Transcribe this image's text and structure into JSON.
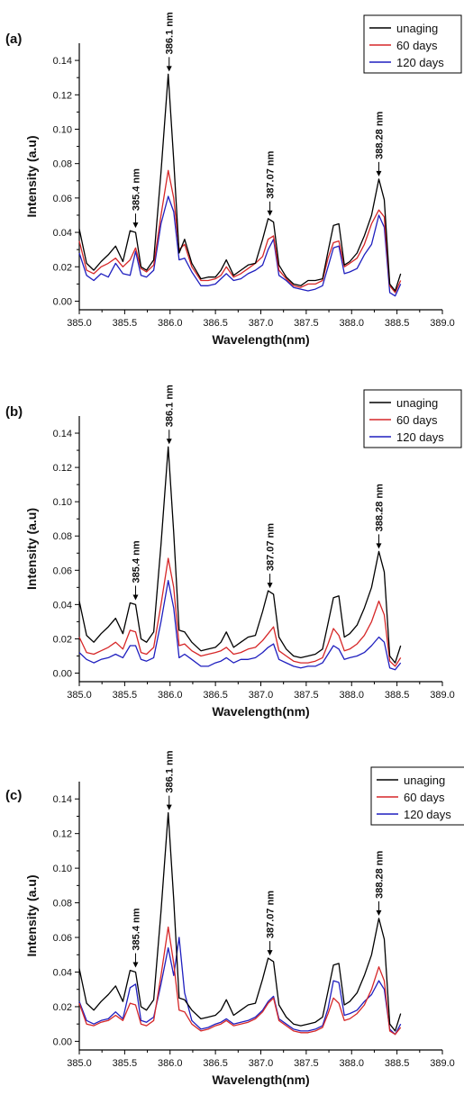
{
  "chart_data": [
    {
      "type": "line",
      "panel_label": "(a)",
      "xlabel": "Wavelength(nm)",
      "ylabel": "Intensity (a.u)",
      "xlim": [
        385.0,
        389.0
      ],
      "ylim": [
        -0.005,
        0.15
      ],
      "x_ticks": [
        "385.0",
        "385.5",
        "386.0",
        "386.5",
        "387.0",
        "387.5",
        "388.0",
        "388.5",
        "389.0"
      ],
      "y_ticks": [
        "0.00",
        "0.02",
        "0.04",
        "0.06",
        "0.08",
        "0.10",
        "0.12",
        "0.14"
      ],
      "legend_position": "top-right",
      "x": [
        385.0,
        385.08,
        385.16,
        385.24,
        385.32,
        385.4,
        385.48,
        385.56,
        385.62,
        385.68,
        385.74,
        385.82,
        385.9,
        385.98,
        386.04,
        386.1,
        386.16,
        386.24,
        386.34,
        386.42,
        386.5,
        386.56,
        386.62,
        386.7,
        386.78,
        386.86,
        386.94,
        387.02,
        387.08,
        387.14,
        387.2,
        387.28,
        387.36,
        387.44,
        387.52,
        387.6,
        387.68,
        387.74,
        387.8,
        387.86,
        387.92,
        387.98,
        388.06,
        388.14,
        388.22,
        388.3,
        388.36,
        388.42,
        388.48,
        388.54
      ],
      "series": [
        {
          "name": "unaging",
          "color": "#000000",
          "values": [
            0.042,
            0.022,
            0.018,
            0.023,
            0.027,
            0.032,
            0.023,
            0.041,
            0.04,
            0.02,
            0.018,
            0.024,
            0.075,
            0.132,
            0.082,
            0.028,
            0.036,
            0.022,
            0.013,
            0.014,
            0.014,
            0.018,
            0.024,
            0.015,
            0.018,
            0.021,
            0.022,
            0.036,
            0.048,
            0.046,
            0.021,
            0.014,
            0.01,
            0.009,
            0.012,
            0.012,
            0.013,
            0.029,
            0.044,
            0.045,
            0.021,
            0.023,
            0.028,
            0.038,
            0.05,
            0.071,
            0.059,
            0.01,
            0.006,
            0.016
          ]
        },
        {
          "name": "60 days",
          "color": "#d62728",
          "values": [
            0.035,
            0.018,
            0.016,
            0.02,
            0.022,
            0.025,
            0.02,
            0.024,
            0.031,
            0.019,
            0.017,
            0.021,
            0.05,
            0.076,
            0.06,
            0.03,
            0.033,
            0.02,
            0.012,
            0.012,
            0.013,
            0.015,
            0.02,
            0.014,
            0.016,
            0.019,
            0.022,
            0.026,
            0.036,
            0.038,
            0.018,
            0.013,
            0.009,
            0.008,
            0.01,
            0.01,
            0.012,
            0.025,
            0.034,
            0.035,
            0.02,
            0.022,
            0.025,
            0.033,
            0.045,
            0.053,
            0.049,
            0.009,
            0.005,
            0.012
          ]
        },
        {
          "name": "120 days",
          "color": "#1f1fbf",
          "values": [
            0.028,
            0.015,
            0.012,
            0.016,
            0.014,
            0.022,
            0.016,
            0.015,
            0.029,
            0.015,
            0.014,
            0.018,
            0.045,
            0.061,
            0.052,
            0.024,
            0.025,
            0.017,
            0.009,
            0.009,
            0.01,
            0.013,
            0.016,
            0.012,
            0.013,
            0.016,
            0.018,
            0.021,
            0.03,
            0.036,
            0.015,
            0.012,
            0.008,
            0.007,
            0.006,
            0.007,
            0.009,
            0.02,
            0.031,
            0.032,
            0.016,
            0.017,
            0.019,
            0.027,
            0.033,
            0.05,
            0.043,
            0.005,
            0.003,
            0.01
          ]
        }
      ],
      "annotations": [
        {
          "text": "386.1 nm",
          "x": 385.99,
          "y": 0.132
        },
        {
          "text": "385.4 nm",
          "x": 385.62,
          "y": 0.041
        },
        {
          "text": "387.07 nm",
          "x": 387.1,
          "y": 0.048
        },
        {
          "text": "388.28 nm",
          "x": 388.3,
          "y": 0.071
        }
      ]
    },
    {
      "type": "line",
      "panel_label": "(b)",
      "xlabel": "Wavelength(nm)",
      "ylabel": "Intensity (a.u)",
      "xlim": [
        385.0,
        389.0
      ],
      "ylim": [
        -0.005,
        0.15
      ],
      "x_ticks": [
        "385.0",
        "385.5",
        "386.0",
        "386.5",
        "387.0",
        "387.5",
        "388.0",
        "388.5",
        "389.0"
      ],
      "y_ticks": [
        "0.00",
        "0.02",
        "0.04",
        "0.06",
        "0.08",
        "0.10",
        "0.12",
        "0.14"
      ],
      "legend_position": "top-right",
      "x": [
        385.0,
        385.08,
        385.16,
        385.24,
        385.32,
        385.4,
        385.48,
        385.56,
        385.62,
        385.68,
        385.74,
        385.82,
        385.9,
        385.98,
        386.04,
        386.1,
        386.16,
        386.24,
        386.34,
        386.42,
        386.5,
        386.56,
        386.62,
        386.7,
        386.78,
        386.86,
        386.94,
        387.02,
        387.08,
        387.14,
        387.2,
        387.28,
        387.36,
        387.44,
        387.52,
        387.6,
        387.68,
        387.74,
        387.8,
        387.86,
        387.92,
        387.98,
        388.06,
        388.14,
        388.22,
        388.3,
        388.36,
        388.42,
        388.48,
        388.54
      ],
      "series": [
        {
          "name": "unaging",
          "color": "#000000",
          "values": [
            0.042,
            0.022,
            0.018,
            0.023,
            0.027,
            0.032,
            0.023,
            0.041,
            0.04,
            0.02,
            0.018,
            0.024,
            0.075,
            0.132,
            0.082,
            0.025,
            0.024,
            0.018,
            0.013,
            0.014,
            0.015,
            0.018,
            0.024,
            0.015,
            0.018,
            0.021,
            0.022,
            0.036,
            0.048,
            0.046,
            0.021,
            0.014,
            0.01,
            0.009,
            0.01,
            0.011,
            0.014,
            0.029,
            0.044,
            0.045,
            0.021,
            0.023,
            0.028,
            0.038,
            0.05,
            0.071,
            0.059,
            0.01,
            0.006,
            0.016
          ]
        },
        {
          "name": "60 days",
          "color": "#d62728",
          "values": [
            0.021,
            0.012,
            0.011,
            0.013,
            0.015,
            0.018,
            0.014,
            0.025,
            0.024,
            0.012,
            0.011,
            0.015,
            0.04,
            0.067,
            0.05,
            0.016,
            0.017,
            0.013,
            0.01,
            0.011,
            0.012,
            0.013,
            0.015,
            0.011,
            0.012,
            0.014,
            0.015,
            0.019,
            0.023,
            0.027,
            0.013,
            0.01,
            0.007,
            0.006,
            0.006,
            0.007,
            0.009,
            0.017,
            0.026,
            0.022,
            0.013,
            0.014,
            0.017,
            0.022,
            0.03,
            0.042,
            0.034,
            0.007,
            0.004,
            0.009
          ]
        },
        {
          "name": "120 days",
          "color": "#1f1fbf",
          "values": [
            0.012,
            0.008,
            0.006,
            0.008,
            0.009,
            0.011,
            0.009,
            0.016,
            0.016,
            0.008,
            0.007,
            0.009,
            0.03,
            0.054,
            0.038,
            0.009,
            0.011,
            0.008,
            0.004,
            0.004,
            0.006,
            0.007,
            0.009,
            0.006,
            0.008,
            0.008,
            0.009,
            0.012,
            0.015,
            0.017,
            0.008,
            0.006,
            0.004,
            0.003,
            0.004,
            0.004,
            0.006,
            0.011,
            0.016,
            0.014,
            0.008,
            0.009,
            0.01,
            0.012,
            0.016,
            0.021,
            0.018,
            0.003,
            0.002,
            0.006
          ]
        }
      ],
      "annotations": [
        {
          "text": "386.1 nm",
          "x": 385.99,
          "y": 0.132
        },
        {
          "text": "385.4 nm",
          "x": 385.62,
          "y": 0.041
        },
        {
          "text": "387.07 nm",
          "x": 387.1,
          "y": 0.048
        },
        {
          "text": "388.28 nm",
          "x": 388.3,
          "y": 0.071
        }
      ]
    },
    {
      "type": "line",
      "panel_label": "(c)",
      "xlabel": "Wavelength(nm)",
      "ylabel": "Intensity (a.u)",
      "xlim": [
        385.0,
        389.0
      ],
      "ylim": [
        -0.005,
        0.15
      ],
      "x_ticks": [
        "385.0",
        "385.5",
        "386.0",
        "386.5",
        "387.0",
        "387.5",
        "388.0",
        "388.5",
        "389.0"
      ],
      "y_ticks": [
        "0.00",
        "0.02",
        "0.04",
        "0.06",
        "0.08",
        "0.10",
        "0.12",
        "0.14"
      ],
      "legend_position": "top-right",
      "x": [
        385.0,
        385.08,
        385.16,
        385.24,
        385.32,
        385.4,
        385.48,
        385.56,
        385.62,
        385.68,
        385.74,
        385.82,
        385.9,
        385.98,
        386.04,
        386.1,
        386.16,
        386.24,
        386.34,
        386.42,
        386.5,
        386.56,
        386.62,
        386.7,
        386.78,
        386.86,
        386.94,
        387.02,
        387.08,
        387.14,
        387.2,
        387.28,
        387.36,
        387.44,
        387.52,
        387.6,
        387.68,
        387.74,
        387.8,
        387.86,
        387.92,
        387.98,
        388.06,
        388.14,
        388.22,
        388.3,
        388.36,
        388.42,
        388.48,
        388.54
      ],
      "series": [
        {
          "name": "unaging",
          "color": "#000000",
          "values": [
            0.042,
            0.022,
            0.018,
            0.023,
            0.027,
            0.032,
            0.023,
            0.041,
            0.04,
            0.02,
            0.018,
            0.024,
            0.075,
            0.132,
            0.082,
            0.025,
            0.024,
            0.018,
            0.013,
            0.014,
            0.015,
            0.018,
            0.024,
            0.015,
            0.018,
            0.021,
            0.022,
            0.036,
            0.048,
            0.046,
            0.021,
            0.014,
            0.01,
            0.009,
            0.01,
            0.011,
            0.014,
            0.029,
            0.044,
            0.045,
            0.021,
            0.023,
            0.028,
            0.038,
            0.05,
            0.071,
            0.059,
            0.01,
            0.006,
            0.016
          ]
        },
        {
          "name": "60 days",
          "color": "#d62728",
          "values": [
            0.022,
            0.01,
            0.009,
            0.011,
            0.012,
            0.015,
            0.012,
            0.022,
            0.021,
            0.01,
            0.009,
            0.012,
            0.038,
            0.066,
            0.045,
            0.018,
            0.017,
            0.01,
            0.006,
            0.007,
            0.009,
            0.01,
            0.012,
            0.009,
            0.01,
            0.011,
            0.013,
            0.017,
            0.022,
            0.025,
            0.012,
            0.009,
            0.006,
            0.005,
            0.005,
            0.006,
            0.008,
            0.016,
            0.025,
            0.022,
            0.012,
            0.013,
            0.016,
            0.021,
            0.03,
            0.043,
            0.035,
            0.006,
            0.004,
            0.008
          ]
        },
        {
          "name": "120 days",
          "color": "#1f1fbf",
          "values": [
            0.023,
            0.012,
            0.01,
            0.012,
            0.013,
            0.017,
            0.013,
            0.031,
            0.033,
            0.012,
            0.011,
            0.014,
            0.033,
            0.054,
            0.038,
            0.06,
            0.028,
            0.012,
            0.007,
            0.008,
            0.01,
            0.011,
            0.013,
            0.01,
            0.011,
            0.012,
            0.014,
            0.018,
            0.023,
            0.026,
            0.013,
            0.01,
            0.007,
            0.006,
            0.006,
            0.007,
            0.009,
            0.019,
            0.035,
            0.034,
            0.015,
            0.016,
            0.018,
            0.023,
            0.027,
            0.035,
            0.03,
            0.007,
            0.004,
            0.01
          ]
        }
      ],
      "annotations": [
        {
          "text": "386.1 nm",
          "x": 385.99,
          "y": 0.132
        },
        {
          "text": "385.4 nm",
          "x": 385.62,
          "y": 0.041
        },
        {
          "text": "387.07 nm",
          "x": 387.1,
          "y": 0.048
        },
        {
          "text": "388.28 nm",
          "x": 388.3,
          "y": 0.071
        }
      ]
    }
  ]
}
